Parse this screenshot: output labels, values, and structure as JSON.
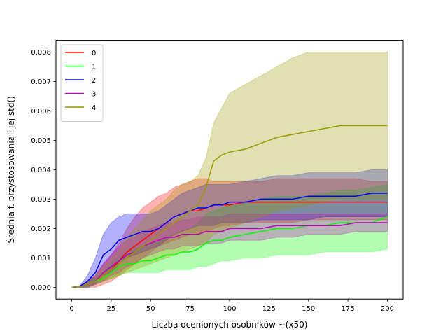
{
  "chart_data": {
    "type": "line",
    "title": "",
    "xlabel": "Liczba ocenionych osobników ~(x50)",
    "ylabel": "Średnia f. przystosowania i jej std()",
    "xlim": [
      -10,
      210
    ],
    "ylim": [
      -0.0004,
      0.0084
    ],
    "xticks": [
      0,
      25,
      50,
      75,
      100,
      125,
      150,
      175,
      200
    ],
    "xtick_labels": [
      "0",
      "25",
      "50",
      "75",
      "100",
      "125",
      "150",
      "175",
      "200"
    ],
    "yticks": [
      0.0,
      0.001,
      0.002,
      0.003,
      0.004,
      0.005,
      0.006,
      0.007,
      0.008
    ],
    "ytick_labels": [
      "0.000",
      "0.001",
      "0.002",
      "0.003",
      "0.004",
      "0.005",
      "0.006",
      "0.007",
      "0.008"
    ],
    "grid": false,
    "legend_position": "top-left",
    "x": [
      0,
      5,
      10,
      15,
      20,
      25,
      30,
      35,
      40,
      45,
      50,
      55,
      60,
      65,
      70,
      75,
      80,
      85,
      90,
      95,
      100,
      110,
      120,
      130,
      140,
      150,
      160,
      170,
      180,
      190,
      200
    ],
    "series": [
      {
        "name": "0",
        "color": "#ff0000",
        "values": [
          0,
          2e-05,
          0.0001,
          0.0002,
          0.0004,
          0.0006,
          0.0009,
          0.0012,
          0.0014,
          0.0016,
          0.0018,
          0.002,
          0.0022,
          0.0024,
          0.0025,
          0.0026,
          0.0026,
          0.0027,
          0.0028,
          0.0028,
          0.0028,
          0.0029,
          0.0029,
          0.0029,
          0.0029,
          0.0029,
          0.0029,
          0.0029,
          0.0029,
          0.0029,
          0.0029
        ],
        "upper": [
          0,
          5e-05,
          0.0002,
          0.0004,
          0.0008,
          0.0011,
          0.0015,
          0.002,
          0.0024,
          0.0027,
          0.0029,
          0.0031,
          0.0032,
          0.0034,
          0.0035,
          0.0036,
          0.0037,
          0.0037,
          0.0036,
          0.0036,
          0.0036,
          0.0036,
          0.0036,
          0.0037,
          0.0037,
          0.0037,
          0.0037,
          0.0037,
          0.0037,
          0.0036,
          0.0036
        ],
        "lower": [
          0,
          0,
          0,
          0,
          0.0001,
          0.0002,
          0.0004,
          0.0006,
          0.0008,
          0.001,
          0.0012,
          0.0014,
          0.0015,
          0.0016,
          0.0017,
          0.0018,
          0.0018,
          0.0019,
          0.002,
          0.0021,
          0.0021,
          0.0022,
          0.0022,
          0.0022,
          0.0022,
          0.0023,
          0.0023,
          0.0023,
          0.0023,
          0.0023,
          0.0023
        ]
      },
      {
        "name": "1",
        "color": "#00ff00",
        "values": [
          0,
          2e-05,
          0.0001,
          0.0002,
          0.0003,
          0.0005,
          0.0007,
          0.0008,
          0.0008,
          0.0009,
          0.0009,
          0.001,
          0.0011,
          0.0011,
          0.0012,
          0.0012,
          0.0013,
          0.0015,
          0.0016,
          0.0016,
          0.0017,
          0.0018,
          0.0019,
          0.002,
          0.002,
          0.0021,
          0.0021,
          0.0022,
          0.0022,
          0.0022,
          0.0024
        ],
        "upper": [
          0,
          5e-05,
          0.0002,
          0.0003,
          0.0005,
          0.0008,
          0.001,
          0.0012,
          0.0013,
          0.0014,
          0.0015,
          0.0016,
          0.0017,
          0.0018,
          0.0019,
          0.002,
          0.0022,
          0.0025,
          0.0026,
          0.0027,
          0.0028,
          0.0029,
          0.003,
          0.0031,
          0.0031,
          0.0031,
          0.0032,
          0.0033,
          0.0033,
          0.0034,
          0.0035
        ],
        "lower": [
          0,
          0,
          0,
          0.0001,
          0.0002,
          0.0003,
          0.0004,
          0.0005,
          0.0005,
          0.0005,
          0.0005,
          0.0005,
          0.0006,
          0.0006,
          0.0006,
          0.0006,
          0.0007,
          0.0007,
          0.0008,
          0.0009,
          0.0009,
          0.001,
          0.001,
          0.0011,
          0.0011,
          0.0011,
          0.0012,
          0.0012,
          0.0012,
          0.0012,
          0.0013
        ]
      },
      {
        "name": "2",
        "color": "#0000ff",
        "values": [
          0,
          3e-05,
          0.0002,
          0.0005,
          0.0011,
          0.0013,
          0.0016,
          0.0017,
          0.0018,
          0.0019,
          0.0019,
          0.002,
          0.0022,
          0.0024,
          0.0025,
          0.0026,
          0.0027,
          0.0027,
          0.0028,
          0.0028,
          0.0029,
          0.0029,
          0.003,
          0.003,
          0.003,
          0.0031,
          0.0031,
          0.0031,
          0.0031,
          0.0032,
          0.0032
        ],
        "upper": [
          0,
          5e-05,
          0.0004,
          0.001,
          0.0018,
          0.0022,
          0.0024,
          0.0025,
          0.0025,
          0.0025,
          0.0025,
          0.0026,
          0.0028,
          0.003,
          0.0032,
          0.0033,
          0.0034,
          0.0035,
          0.0035,
          0.0035,
          0.0035,
          0.0036,
          0.0037,
          0.0038,
          0.0038,
          0.0039,
          0.0039,
          0.0039,
          0.0039,
          0.004,
          0.004
        ],
        "lower": [
          0,
          0,
          0,
          0.0001,
          0.0004,
          0.0005,
          0.0008,
          0.001,
          0.0011,
          0.0012,
          0.0013,
          0.0014,
          0.0016,
          0.0018,
          0.0019,
          0.002,
          0.0021,
          0.0021,
          0.0021,
          0.0022,
          0.0022,
          0.0022,
          0.0023,
          0.0023,
          0.0023,
          0.0023,
          0.0024,
          0.0024,
          0.0024,
          0.0024,
          0.0024
        ]
      },
      {
        "name": "3",
        "color": "#bf00bf",
        "values": [
          0,
          2e-05,
          0.0001,
          0.0002,
          0.0005,
          0.0007,
          0.0009,
          0.0011,
          0.0012,
          0.0014,
          0.0015,
          0.0016,
          0.0017,
          0.0017,
          0.0018,
          0.0018,
          0.0018,
          0.0019,
          0.0019,
          0.0019,
          0.002,
          0.002,
          0.002,
          0.0021,
          0.0021,
          0.0021,
          0.0021,
          0.0021,
          0.0022,
          0.0022,
          0.0022
        ],
        "upper": [
          0,
          5e-05,
          0.0002,
          0.0004,
          0.0008,
          0.0011,
          0.0014,
          0.0016,
          0.0017,
          0.0019,
          0.002,
          0.0021,
          0.0022,
          0.0022,
          0.0023,
          0.0023,
          0.0024,
          0.0024,
          0.0024,
          0.0024,
          0.0025,
          0.0025,
          0.0025,
          0.0025,
          0.0025,
          0.0025,
          0.0025,
          0.0025,
          0.0025,
          0.0025,
          0.0025
        ],
        "lower": [
          0,
          0,
          0,
          0.0001,
          0.0002,
          0.0004,
          0.0005,
          0.0007,
          0.0008,
          0.001,
          0.0011,
          0.0012,
          0.0013,
          0.0013,
          0.0014,
          0.0014,
          0.0014,
          0.0015,
          0.0015,
          0.0015,
          0.0016,
          0.0016,
          0.0016,
          0.0017,
          0.0017,
          0.0018,
          0.0018,
          0.0018,
          0.0019,
          0.0019,
          0.0019
        ]
      },
      {
        "name": "4",
        "color": "#999900",
        "values": [
          0,
          2e-05,
          0.0001,
          0.0002,
          0.0004,
          0.0006,
          0.0008,
          0.001,
          0.0012,
          0.0014,
          0.0016,
          0.0018,
          0.002,
          0.0022,
          0.0024,
          0.0026,
          0.0028,
          0.0034,
          0.0043,
          0.0045,
          0.0046,
          0.0047,
          0.0049,
          0.0051,
          0.0052,
          0.0053,
          0.0054,
          0.0055,
          0.0055,
          0.0055,
          0.0055
        ],
        "upper": [
          0,
          5e-05,
          0.0002,
          0.0004,
          0.0007,
          0.001,
          0.0013,
          0.0017,
          0.002,
          0.0023,
          0.0026,
          0.0028,
          0.003,
          0.0033,
          0.0035,
          0.0036,
          0.0038,
          0.0044,
          0.0056,
          0.0061,
          0.0066,
          0.0069,
          0.0072,
          0.0075,
          0.0078,
          0.008,
          0.008,
          0.008,
          0.008,
          0.008,
          0.008
        ],
        "lower": [
          0,
          0,
          0,
          0.0001,
          0.0002,
          0.0003,
          0.0004,
          0.0005,
          0.0006,
          0.0007,
          0.0008,
          0.0009,
          0.001,
          0.0011,
          0.0012,
          0.0013,
          0.0014,
          0.0015,
          0.0018,
          0.0019,
          0.002,
          0.0022,
          0.0024,
          0.0026,
          0.0027,
          0.0028,
          0.0029,
          0.003,
          0.003,
          0.003,
          0.003
        ]
      }
    ]
  }
}
